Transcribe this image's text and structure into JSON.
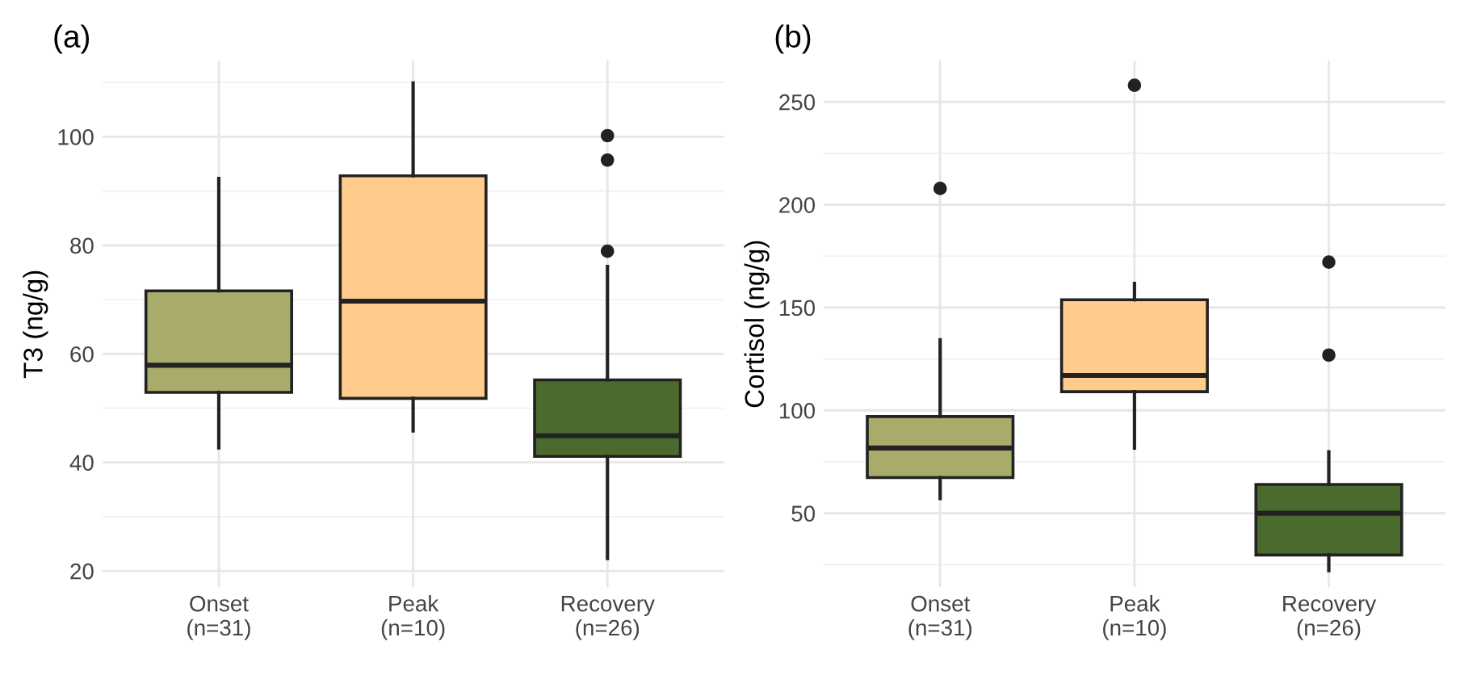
{
  "chart_data": [
    {
      "type": "box",
      "title": "(a)",
      "ylabel": "T3 (ng/g)",
      "categories": [
        "Onset\n(n=31)",
        "Peak\n(n=10)",
        "Recovery\n(n=26)"
      ],
      "colors": [
        "#a9ab6a",
        "#ffcc8e",
        "#4a6a2e"
      ],
      "boxes": [
        {
          "low": 42.7,
          "q1": 52.9,
          "median": 57.9,
          "q3": 71.6,
          "high": 92.3
        },
        {
          "low": 45.8,
          "q1": 51.8,
          "median": 69.7,
          "q3": 92.8,
          "high": 109.9
        },
        {
          "low": 22.3,
          "q1": 41.1,
          "median": 44.9,
          "q3": 55.2,
          "high": 76.1,
          "outliers": [
            100.2,
            95.7,
            78.9
          ]
        }
      ],
      "ylim": [
        17,
        114
      ],
      "yticks": [
        20,
        40,
        60,
        80,
        100
      ],
      "grid": true
    },
    {
      "type": "box",
      "title": "(b)",
      "ylabel": "Cortisol (ng/g)",
      "categories": [
        "Onset\n(n=31)",
        "Peak\n(n=10)",
        "Recovery\n(n=26)"
      ],
      "colors": [
        "#a9ab6a",
        "#ffcc8e",
        "#4a6a2e"
      ],
      "boxes": [
        {
          "low": 57.1,
          "q1": 67.3,
          "median": 81.7,
          "q3": 97.0,
          "high": 134.3,
          "outliers": [
            207.9
          ]
        },
        {
          "low": 81.7,
          "q1": 109.1,
          "median": 117.0,
          "q3": 153.8,
          "high": 161.7,
          "outliers": [
            258.1
          ]
        },
        {
          "low": 22.1,
          "q1": 29.7,
          "median": 50,
          "q3": 64.0,
          "high": 79.9,
          "outliers": [
            172.1,
            126.9
          ]
        }
      ],
      "ylim": [
        14,
        270
      ],
      "yticks": [
        50,
        100,
        150,
        200,
        250
      ],
      "grid": true
    }
  ]
}
